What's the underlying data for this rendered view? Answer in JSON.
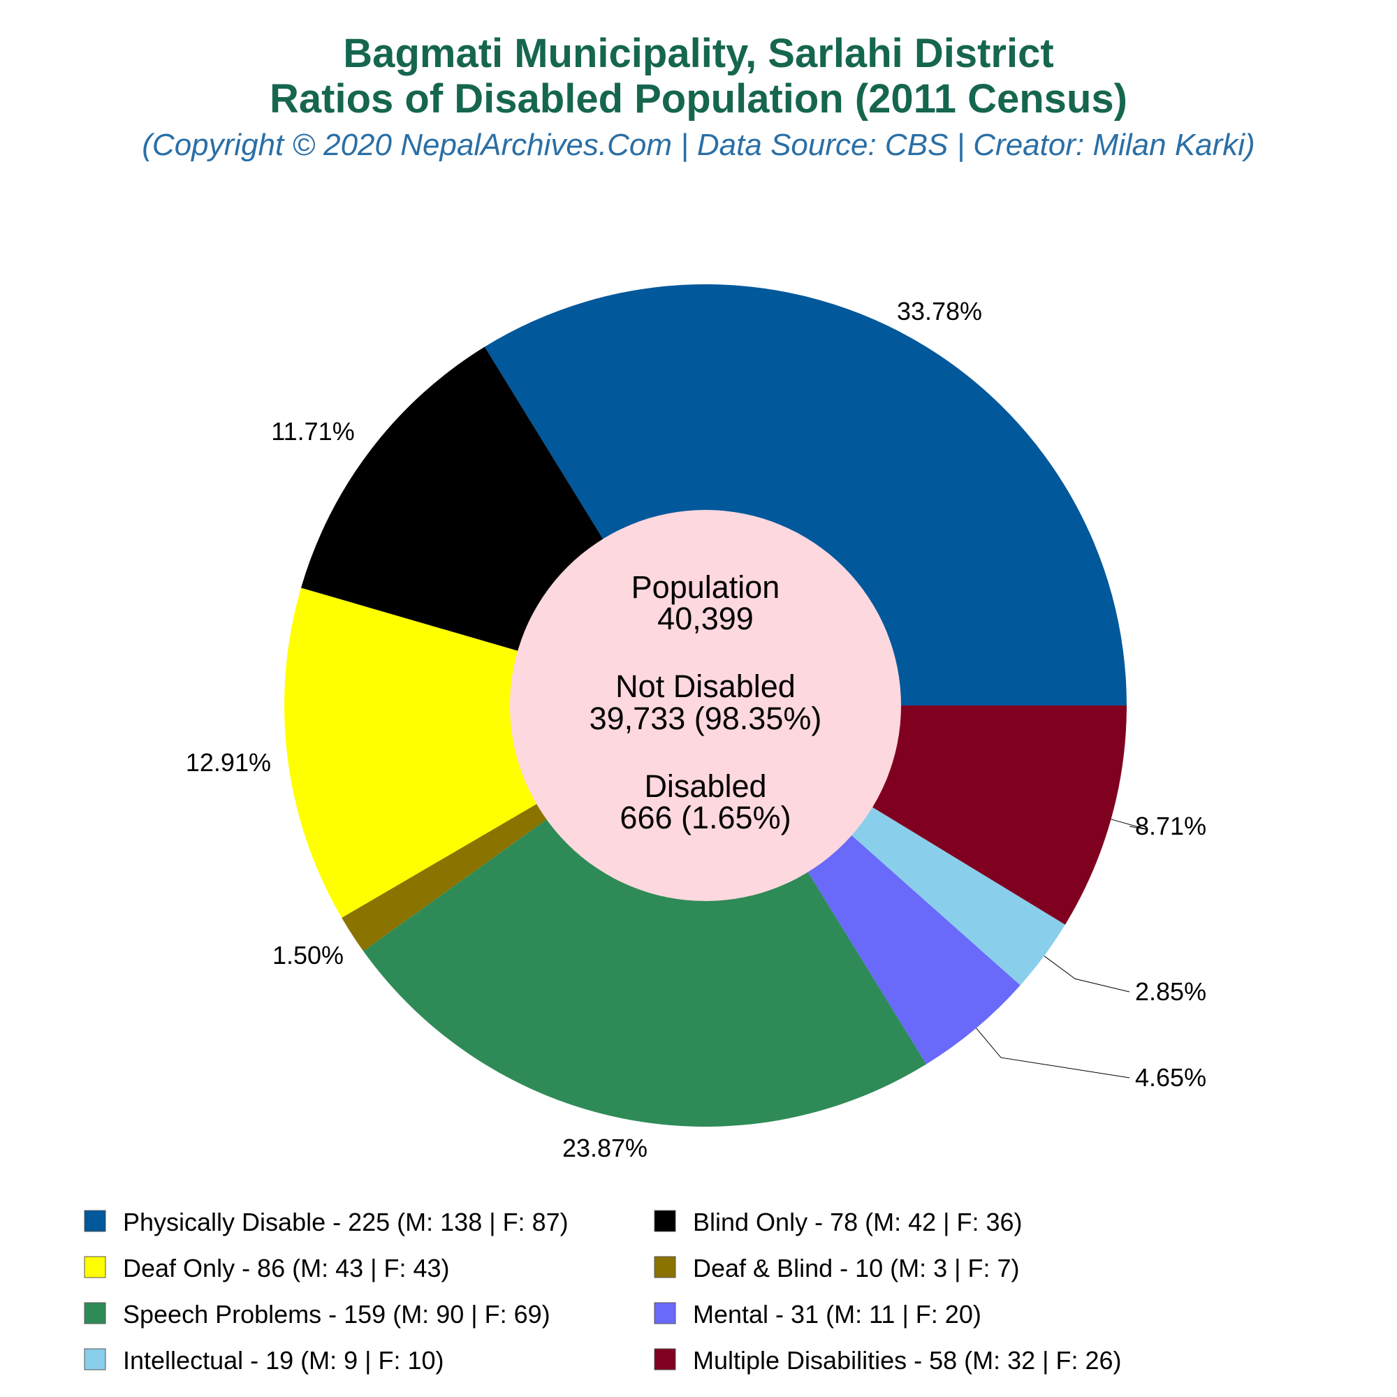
{
  "title_line1": "Bagmati Municipality, Sarlahi District",
  "title_line2": "Ratios of Disabled Population (2011 Census)",
  "subtitle": "(Copyright © 2020 NepalArchives.Com | Data Source: CBS | Creator: Milan Karki)",
  "center": {
    "population_label": "Population",
    "population_value": "40,399",
    "not_disabled_label": "Not Disabled",
    "not_disabled_value": "39,733 (98.35%)",
    "disabled_label": "Disabled",
    "disabled_value": "666 (1.65%)",
    "fill": "#fdd8de"
  },
  "chart_data": {
    "type": "pie",
    "style": "donut",
    "legend_position": "bottom",
    "start": "3 o'clock",
    "direction": "counter-clockwise",
    "slices": [
      {
        "label": "Physically Disable - 225 (M: 138 | F: 87)",
        "value": 225,
        "percent_label": "33.78%",
        "color": "#01589b"
      },
      {
        "label": "Blind Only - 78 (M: 42 | F: 36)",
        "value": 78,
        "percent_label": "11.71%",
        "color": "#000000"
      },
      {
        "label": "Deaf Only - 86 (M: 43 | F: 43)",
        "value": 86,
        "percent_label": "12.91%",
        "color": "#ffff00"
      },
      {
        "label": "Deaf & Blind - 10 (M: 3 | F: 7)",
        "value": 10,
        "percent_label": "1.50%",
        "color": "#8b7300"
      },
      {
        "label": "Speech Problems - 159 (M: 90 | F: 69)",
        "value": 159,
        "percent_label": "23.87%",
        "color": "#2e8b57"
      },
      {
        "label": "Mental - 31 (M: 11 | F: 20)",
        "value": 31,
        "percent_label": "4.65%",
        "color": "#6969fa"
      },
      {
        "label": "Intellectual - 19 (M: 9 | F: 10)",
        "value": 19,
        "percent_label": "2.85%",
        "color": "#89ceeb"
      },
      {
        "label": "Multiple Disabilities - 58 (M: 32 | F: 26)",
        "value": 58,
        "percent_label": "8.71%",
        "color": "#800020"
      }
    ]
  }
}
